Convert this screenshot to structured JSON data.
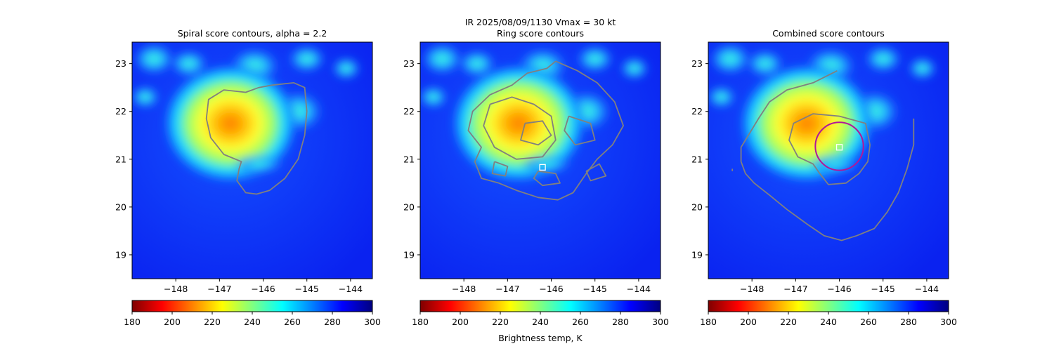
{
  "suptitle": "IR  2025/08/09/1130    Vmax = 30 kt",
  "colorbar_label": "Brightness temp, K",
  "colormap": {
    "name": "jet_r",
    "stops": [
      "#7f0000",
      "#ff0000",
      "#ff8000",
      "#ffff00",
      "#80ff80",
      "#00ffff",
      "#0080ff",
      "#0000ff",
      "#00007f"
    ],
    "vmin": 180,
    "vmax": 300,
    "ticks": [
      "180",
      "200",
      "220",
      "240",
      "260",
      "280",
      "300"
    ]
  },
  "colors": {
    "contour": "#808080",
    "circle": "#b0179a",
    "marker": "#ffffff",
    "background_field": "#0a28ff"
  },
  "chart_data": [
    {
      "type": "heatmap",
      "title": "Spiral score contours, alpha =  2.2",
      "xlim": [
        -149.0,
        -143.5
      ],
      "ylim": [
        18.5,
        23.45
      ],
      "xticks": [
        "−148",
        "−147",
        "−146",
        "−145",
        "−144"
      ],
      "xtick_values": [
        -148,
        -147,
        -146,
        -145,
        -144
      ],
      "yticks": [
        "19",
        "20",
        "21",
        "22",
        "23"
      ],
      "ytick_values": [
        19,
        20,
        21,
        22,
        23
      ],
      "contours": [
        [
          [
            -145.8,
            22.55
          ],
          [
            -145.3,
            22.6
          ],
          [
            -145.05,
            22.5
          ],
          [
            -145.0,
            22.0
          ],
          [
            -145.05,
            21.5
          ],
          [
            -145.2,
            21.0
          ],
          [
            -145.5,
            20.6
          ],
          [
            -145.85,
            20.35
          ],
          [
            -146.15,
            20.27
          ],
          [
            -146.4,
            20.3
          ],
          [
            -146.6,
            20.55
          ],
          [
            -146.55,
            20.8
          ],
          [
            -146.5,
            20.95
          ],
          [
            -146.9,
            21.1
          ],
          [
            -147.2,
            21.45
          ],
          [
            -147.3,
            21.85
          ],
          [
            -147.25,
            22.25
          ],
          [
            -146.9,
            22.45
          ],
          [
            -146.4,
            22.4
          ],
          [
            -146.1,
            22.5
          ],
          [
            -145.8,
            22.55
          ]
        ]
      ],
      "markers": []
    },
    {
      "type": "heatmap",
      "title": "Ring score contours",
      "xlim": [
        -149.0,
        -143.5
      ],
      "ylim": [
        18.5,
        23.45
      ],
      "xticks": [
        "−148",
        "−147",
        "−146",
        "−145",
        "−144"
      ],
      "xtick_values": [
        -148,
        -147,
        -146,
        -145,
        -144
      ],
      "yticks": [
        "19",
        "20",
        "21",
        "22",
        "23"
      ],
      "ytick_values": [
        19,
        20,
        21,
        22,
        23
      ],
      "contours": [
        [
          [
            -145.9,
            23.05
          ],
          [
            -145.4,
            22.85
          ],
          [
            -144.95,
            22.6
          ],
          [
            -144.55,
            22.2
          ],
          [
            -144.35,
            21.7
          ],
          [
            -144.6,
            21.3
          ],
          [
            -144.95,
            21.0
          ],
          [
            -145.2,
            20.7
          ],
          [
            -145.5,
            20.3
          ],
          [
            -145.85,
            20.15
          ],
          [
            -146.3,
            20.2
          ],
          [
            -146.8,
            20.35
          ],
          [
            -147.2,
            20.5
          ],
          [
            -147.6,
            20.6
          ],
          [
            -147.75,
            20.95
          ],
          [
            -147.6,
            21.25
          ],
          [
            -147.9,
            21.6
          ],
          [
            -147.8,
            22.0
          ],
          [
            -147.4,
            22.35
          ],
          [
            -146.9,
            22.55
          ],
          [
            -146.55,
            22.8
          ],
          [
            -146.1,
            22.9
          ],
          [
            -145.9,
            23.05
          ]
        ],
        [
          [
            -147.4,
            22.15
          ],
          [
            -146.9,
            22.3
          ],
          [
            -146.4,
            22.15
          ],
          [
            -146.0,
            21.9
          ],
          [
            -145.9,
            21.4
          ],
          [
            -146.2,
            21.05
          ],
          [
            -146.8,
            21.0
          ],
          [
            -147.3,
            21.25
          ],
          [
            -147.55,
            21.7
          ],
          [
            -147.4,
            22.15
          ]
        ],
        [
          [
            -146.6,
            21.75
          ],
          [
            -146.2,
            21.8
          ],
          [
            -146.0,
            21.5
          ],
          [
            -146.3,
            21.3
          ],
          [
            -146.7,
            21.4
          ],
          [
            -146.6,
            21.75
          ]
        ],
        [
          [
            -145.6,
            21.9
          ],
          [
            -145.1,
            21.75
          ],
          [
            -145.0,
            21.4
          ],
          [
            -145.45,
            21.3
          ],
          [
            -145.7,
            21.6
          ],
          [
            -145.6,
            21.9
          ]
        ],
        [
          [
            -146.3,
            20.75
          ],
          [
            -145.9,
            20.7
          ],
          [
            -145.8,
            20.5
          ],
          [
            -146.2,
            20.45
          ],
          [
            -146.4,
            20.6
          ],
          [
            -146.3,
            20.75
          ]
        ],
        [
          [
            -147.3,
            20.95
          ],
          [
            -147.0,
            20.85
          ],
          [
            -147.05,
            20.65
          ],
          [
            -147.35,
            20.7
          ],
          [
            -147.3,
            20.95
          ]
        ],
        [
          [
            -145.2,
            20.75
          ],
          [
            -144.9,
            20.9
          ],
          [
            -144.75,
            20.65
          ],
          [
            -145.1,
            20.55
          ],
          [
            -145.2,
            20.75
          ]
        ]
      ],
      "markers": [
        {
          "type": "square",
          "lon": -146.2,
          "lat": 20.83
        }
      ]
    },
    {
      "type": "heatmap",
      "title": "Combined score contours",
      "xlim": [
        -149.0,
        -143.5
      ],
      "ylim": [
        18.5,
        23.45
      ],
      "xticks": [
        "−148",
        "−147",
        "−146",
        "−145",
        "−144"
      ],
      "xtick_values": [
        -148,
        -147,
        -146,
        -145,
        -144
      ],
      "yticks": [
        "19",
        "20",
        "21",
        "22",
        "23"
      ],
      "ytick_values": [
        19,
        20,
        21,
        22,
        23
      ],
      "contours": [
        [
          [
            -146.05,
            22.85
          ],
          [
            -146.6,
            22.6
          ],
          [
            -147.2,
            22.45
          ],
          [
            -147.6,
            22.2
          ],
          [
            -147.85,
            21.85
          ],
          [
            -148.05,
            21.55
          ],
          [
            -148.25,
            21.25
          ],
          [
            -148.25,
            20.95
          ],
          [
            -148.15,
            20.7
          ],
          [
            -147.95,
            20.5
          ],
          [
            -147.6,
            20.25
          ],
          [
            -147.2,
            19.95
          ],
          [
            -146.75,
            19.65
          ],
          [
            -146.35,
            19.4
          ],
          [
            -145.95,
            19.3
          ],
          [
            -145.6,
            19.4
          ],
          [
            -145.2,
            19.55
          ],
          [
            -144.9,
            19.9
          ],
          [
            -144.65,
            20.3
          ],
          [
            -144.45,
            20.8
          ],
          [
            -144.3,
            21.3
          ],
          [
            -144.3,
            21.85
          ]
        ],
        [
          [
            -146.0,
            21.9
          ],
          [
            -145.4,
            21.75
          ],
          [
            -145.3,
            21.3
          ],
          [
            -145.35,
            20.95
          ],
          [
            -145.55,
            20.7
          ],
          [
            -145.85,
            20.5
          ],
          [
            -146.25,
            20.47
          ],
          [
            -146.45,
            20.7
          ],
          [
            -146.6,
            20.9
          ],
          [
            -146.95,
            21.05
          ],
          [
            -147.15,
            21.4
          ],
          [
            -147.05,
            21.75
          ],
          [
            -146.6,
            21.95
          ],
          [
            -146.0,
            21.9
          ]
        ],
        [
          [
            -148.45,
            20.75
          ],
          [
            -148.45,
            20.8
          ]
        ]
      ],
      "circles": [
        {
          "lon": -146.0,
          "lat": 21.27,
          "radius_deg": 0.55
        }
      ],
      "markers": [
        {
          "type": "square",
          "lon": -146.0,
          "lat": 21.25
        }
      ]
    }
  ]
}
